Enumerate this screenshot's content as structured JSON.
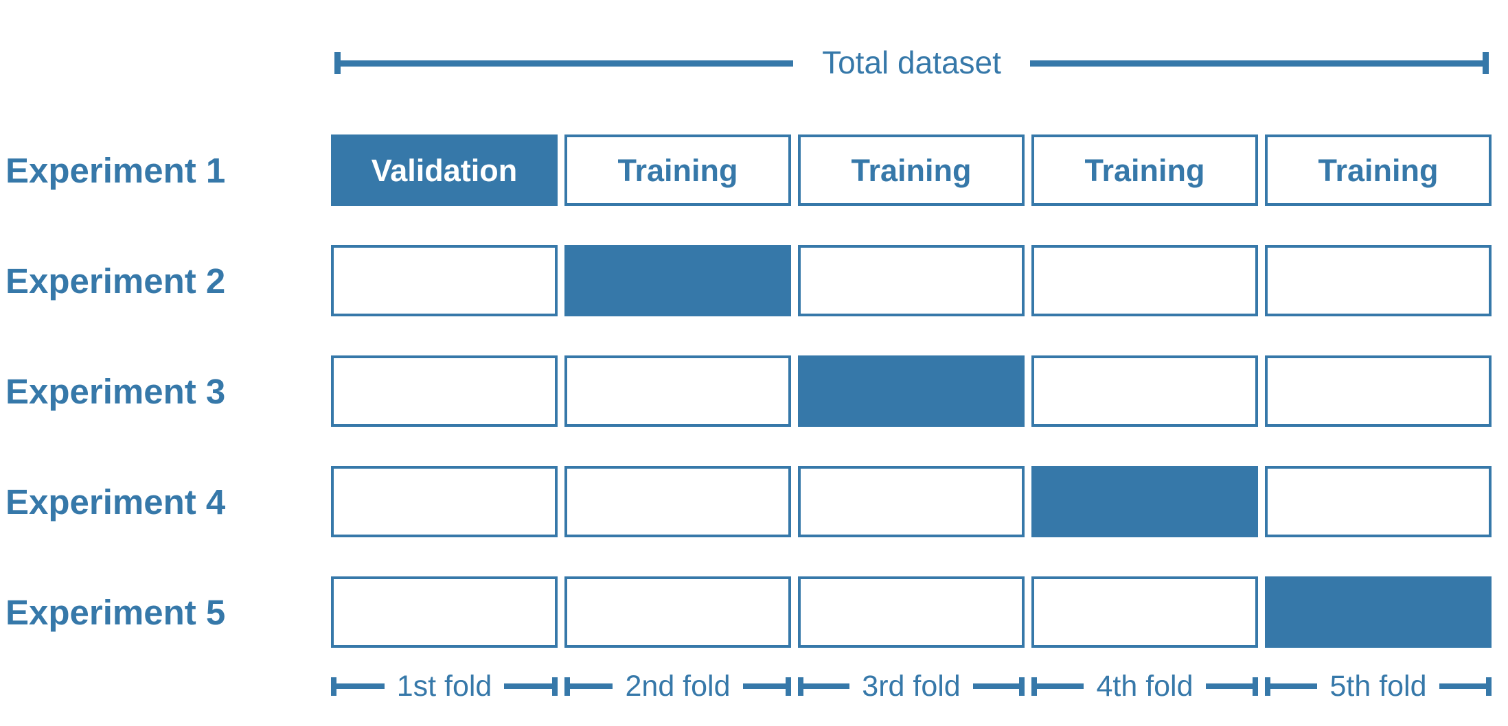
{
  "colors": {
    "accent": "#3678A9",
    "validation_text": "#FFFFFF"
  },
  "header": {
    "total_dataset_label": "Total dataset"
  },
  "experiments": [
    {
      "label": "Experiment 1",
      "filled_fold": 0,
      "cell_labels": [
        "Validation",
        "Training",
        "Training",
        "Training",
        "Training"
      ]
    },
    {
      "label": "Experiment 2",
      "filled_fold": 1,
      "cell_labels": [
        "",
        "",
        "",
        "",
        ""
      ]
    },
    {
      "label": "Experiment 3",
      "filled_fold": 2,
      "cell_labels": [
        "",
        "",
        "",
        "",
        ""
      ]
    },
    {
      "label": "Experiment 4",
      "filled_fold": 3,
      "cell_labels": [
        "",
        "",
        "",
        "",
        ""
      ]
    },
    {
      "label": "Experiment 5",
      "filled_fold": 4,
      "cell_labels": [
        "",
        "",
        "",
        "",
        ""
      ]
    }
  ],
  "fold_ruler": {
    "labels": [
      "1st fold",
      "2nd fold",
      "3rd fold",
      "4th fold",
      "5th fold"
    ]
  }
}
